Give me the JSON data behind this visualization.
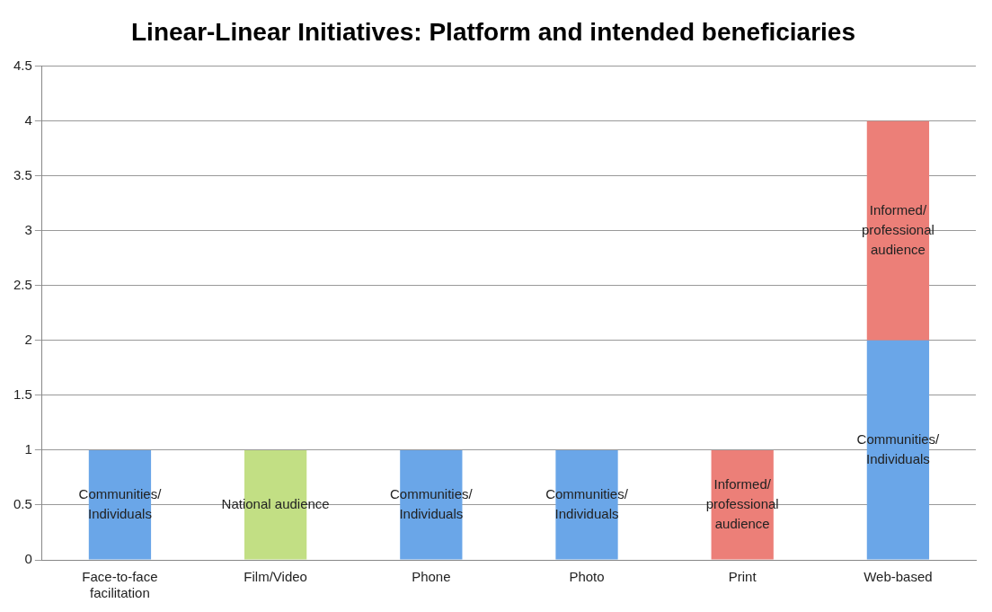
{
  "chart_data": {
    "type": "bar",
    "title": "Linear-Linear Initiatives: Platform and intended beneficiaries",
    "categories": [
      "Face-to-face facilitation",
      "Film/Video",
      "Phone",
      "Photo",
      "Print",
      "Web-based"
    ],
    "stacked": true,
    "ylim": [
      0,
      4.5
    ],
    "yticks": [
      0,
      0.5,
      1,
      1.5,
      2,
      2.5,
      3,
      3.5,
      4,
      4.5
    ],
    "grid": "y",
    "legend": false,
    "series": [
      {
        "name": "Communities/ Individuals",
        "color": "#6aa6e8",
        "values": [
          1,
          null,
          1,
          1,
          null,
          2
        ]
      },
      {
        "name": "National audience",
        "color": "#c2df84",
        "values": [
          null,
          1,
          null,
          null,
          null,
          null
        ]
      },
      {
        "name": "Informed/ professional audience",
        "color": "#ec7f78",
        "values": [
          null,
          null,
          null,
          null,
          1,
          2
        ]
      }
    ]
  }
}
